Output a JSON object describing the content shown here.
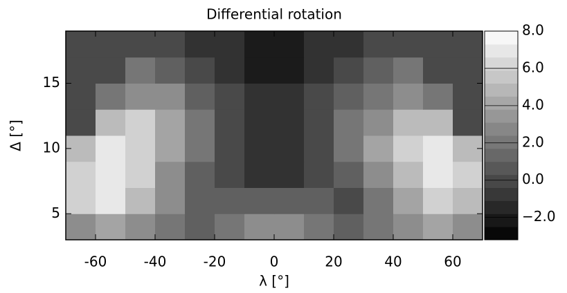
{
  "chart_data": {
    "type": "heatmap",
    "title": "Differential rotation",
    "x_label": "λ [°]",
    "y_label": "Δ [°]",
    "xbins": [
      -70,
      -60,
      -50,
      -40,
      -30,
      -20,
      -10,
      0,
      10,
      20,
      30,
      40,
      50,
      60,
      70
    ],
    "ybins": [
      3,
      5,
      7,
      9,
      11,
      13,
      15,
      17,
      19
    ],
    "values": [
      [
        3,
        4,
        3,
        2,
        1,
        2,
        3,
        3,
        2,
        1,
        2,
        3,
        4,
        3
      ],
      [
        6,
        7,
        5,
        3,
        1,
        1,
        1,
        1,
        1,
        0,
        2,
        4,
        6,
        5
      ],
      [
        6,
        7,
        6,
        3,
        1,
        0,
        -1,
        -1,
        0,
        1,
        3,
        5,
        7,
        6
      ],
      [
        5,
        7,
        6,
        4,
        2,
        0,
        -1,
        -1,
        0,
        2,
        4,
        6,
        7,
        5
      ],
      [
        0,
        5,
        6,
        4,
        2,
        0,
        -1,
        -1,
        0,
        2,
        3,
        5,
        5,
        0
      ],
      [
        0,
        2,
        3,
        3,
        1,
        0,
        -1,
        -1,
        0,
        1,
        2,
        3,
        2,
        0
      ],
      [
        0,
        0,
        2,
        1,
        0,
        -1,
        -2,
        -2,
        -1,
        0,
        1,
        2,
        0,
        0
      ],
      [
        0,
        0,
        0,
        0,
        -1,
        -1,
        -2,
        -2,
        -1,
        -1,
        0,
        0,
        0,
        0
      ]
    ],
    "xlim": [
      -70,
      70
    ],
    "xticks": [
      -60,
      -40,
      -20,
      0,
      20,
      40,
      60
    ],
    "ylim": [
      3,
      19
    ],
    "yticks": [
      5,
      10,
      15
    ],
    "zlim": [
      -3.2,
      8
    ],
    "zticks": [
      {
        "value": -2,
        "label": "−2.0"
      },
      {
        "value": 0,
        "label": "0.0"
      },
      {
        "value": 2,
        "label": "2.0"
      },
      {
        "value": 4,
        "label": "4.0"
      },
      {
        "value": 6,
        "label": "6.0"
      },
      {
        "value": 8,
        "label": "8.0"
      }
    ],
    "colormap": "grayscale"
  }
}
